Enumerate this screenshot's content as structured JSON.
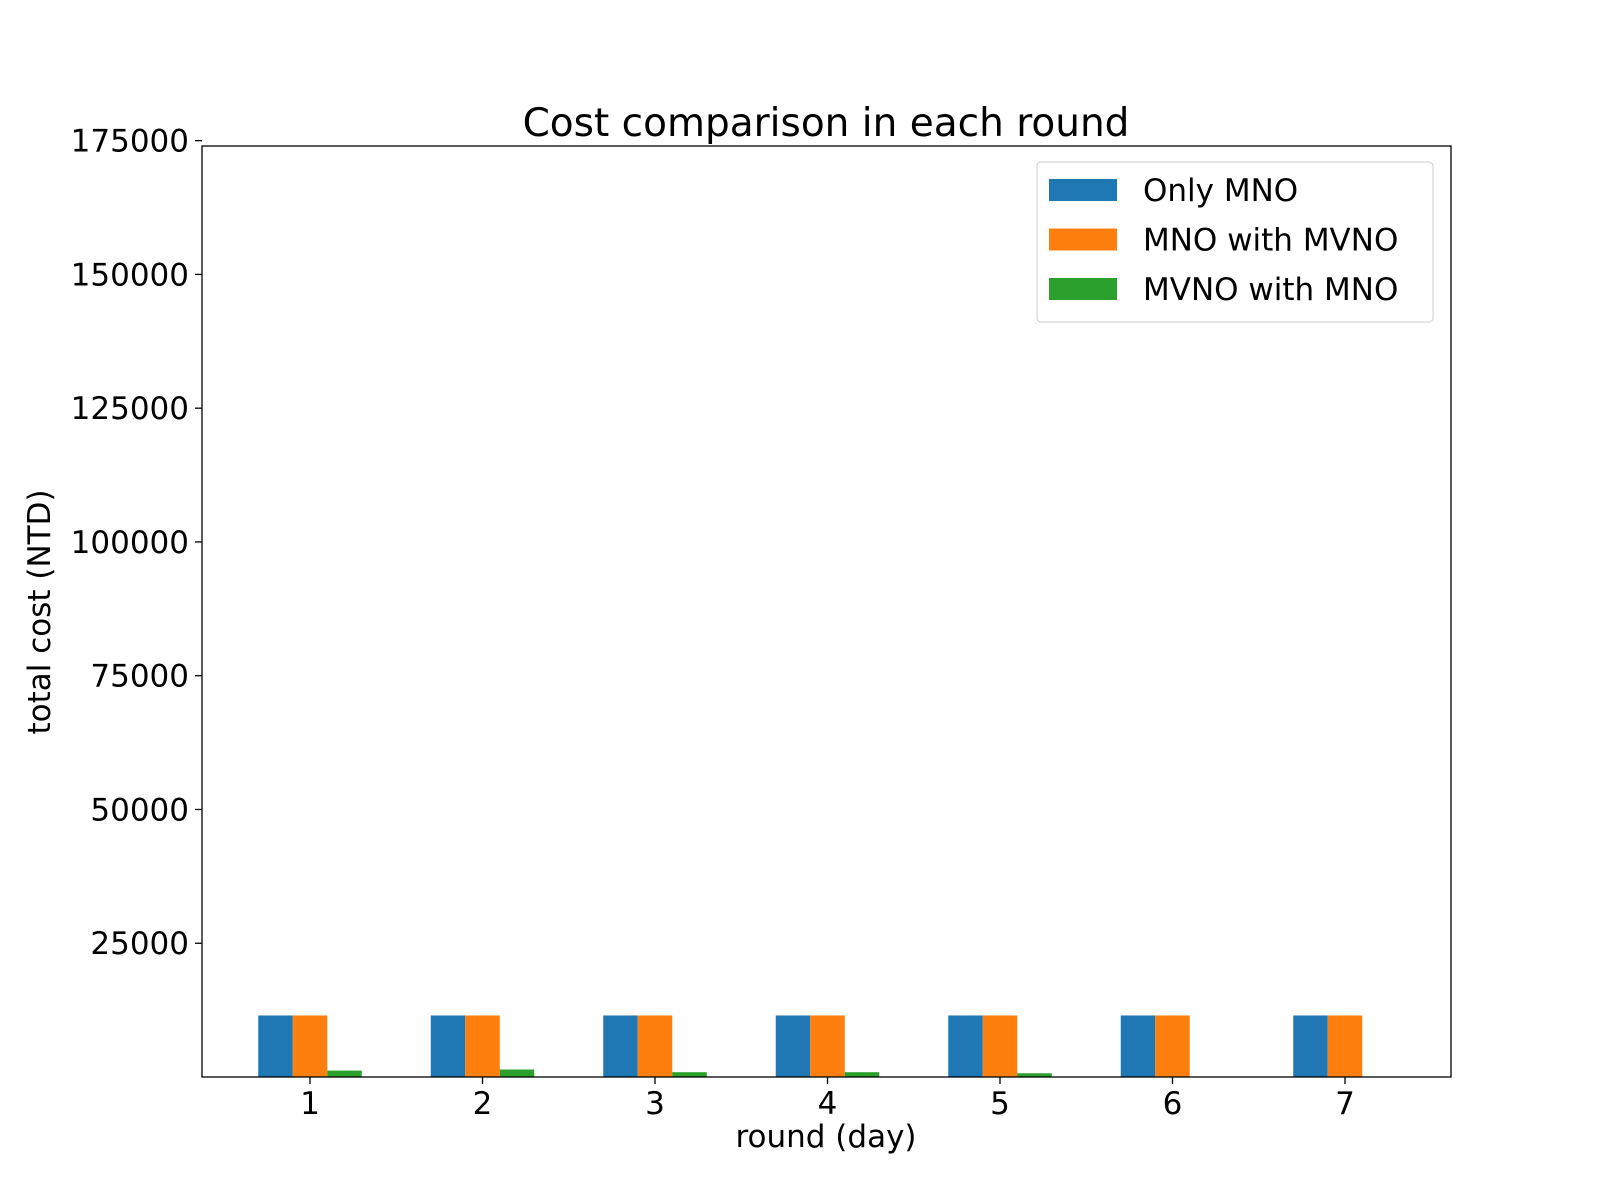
{
  "chart_data": {
    "type": "bar",
    "title": "Cost comparison in each round",
    "xlabel": "round (day)",
    "ylabel": "total cost (NTD)",
    "categories": [
      "1",
      "2",
      "3",
      "4",
      "5",
      "6",
      "7"
    ],
    "series": [
      {
        "name": "Only MNO",
        "color": "#1f77b4",
        "values": [
          11500,
          11500,
          11500,
          11500,
          11500,
          11500,
          11500
        ]
      },
      {
        "name": "MNO with MVNO",
        "color": "#ff7f0e",
        "values": [
          11500,
          11500,
          11500,
          11500,
          11500,
          11500,
          11500
        ]
      },
      {
        "name": "MVNO with MNO",
        "color": "#2ca02c",
        "values": [
          1200,
          1400,
          900,
          900,
          700,
          0,
          0
        ]
      }
    ],
    "ylim": [
      0,
      174000
    ],
    "yticks": [
      25000,
      50000,
      75000,
      100000,
      125000,
      150000,
      175000
    ],
    "grid": false,
    "legend_position": "top-right"
  }
}
